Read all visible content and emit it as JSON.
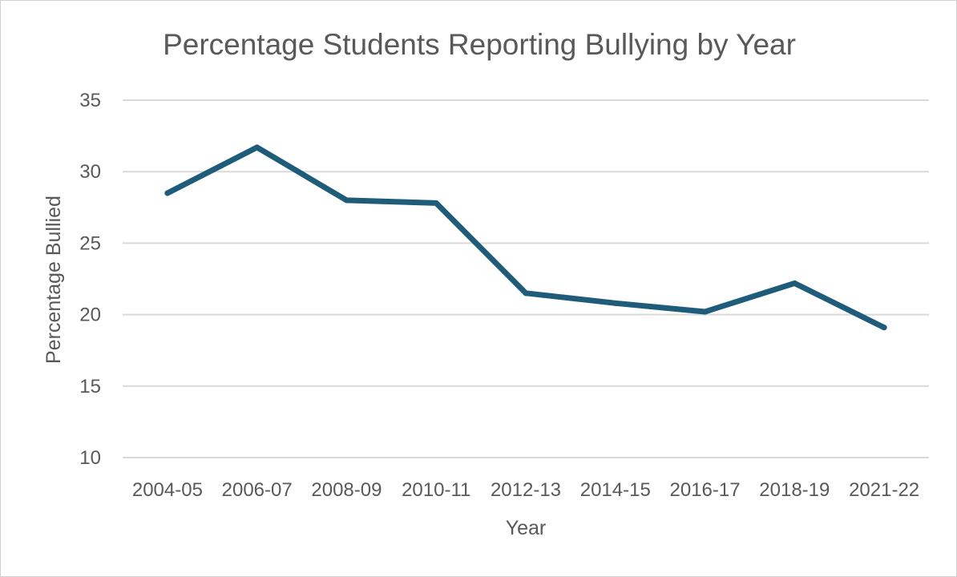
{
  "chart_data": {
    "type": "line",
    "title": "Percentage Students Reporting Bullying by Year",
    "xlabel": "Year",
    "ylabel": "Percentage Bullied",
    "categories": [
      "2004-05",
      "2006-07",
      "2008-09",
      "2010-11",
      "2012-13",
      "2014-15",
      "2016-17",
      "2018-19",
      "2021-22"
    ],
    "series": [
      {
        "values": [
          28.5,
          31.7,
          28.0,
          27.8,
          21.5,
          20.8,
          20.2,
          22.2,
          19.1
        ],
        "color": "#1f5c7a"
      }
    ],
    "ylim": [
      10,
      35
    ],
    "yticks": [
      10,
      15,
      20,
      25,
      30,
      35
    ],
    "grid": true,
    "legend": "none"
  }
}
